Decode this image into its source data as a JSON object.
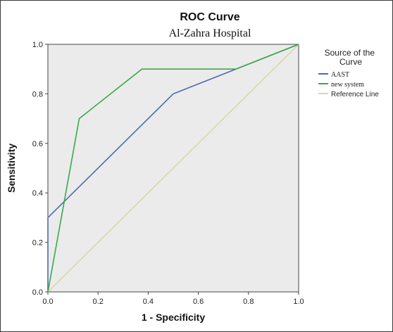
{
  "chart_data": {
    "type": "line",
    "title": "ROC Curve",
    "subtitle": "Al-Zahra Hospital",
    "xlabel": "1 - Specificity",
    "ylabel": "Sensitivity",
    "xlim": [
      0.0,
      1.0
    ],
    "ylim": [
      0.0,
      1.0
    ],
    "xticks": [
      "0.0",
      "0.2",
      "0.4",
      "0.6",
      "0.8",
      "1.0"
    ],
    "yticks": [
      "0.0",
      "0.2",
      "0.4",
      "0.6",
      "0.8",
      "1.0"
    ],
    "grid": false,
    "legend": {
      "title": "Source of the Curve",
      "placement": "right"
    },
    "series": [
      {
        "name": "AAST",
        "color": "#4a6bb5",
        "x": [
          0.0,
          0.0,
          0.5,
          0.75,
          1.0
        ],
        "y": [
          0.0,
          0.3,
          0.8,
          0.9,
          1.0
        ]
      },
      {
        "name": "new system",
        "color": "#3aaa48",
        "x": [
          0.0,
          0.125,
          0.375,
          0.75,
          1.0
        ],
        "y": [
          0.0,
          0.7,
          0.9,
          0.9,
          1.0
        ]
      },
      {
        "name": "Reference Line",
        "color": "#dcd6a8",
        "x": [
          0.0,
          1.0
        ],
        "y": [
          0.0,
          1.0
        ]
      }
    ]
  }
}
